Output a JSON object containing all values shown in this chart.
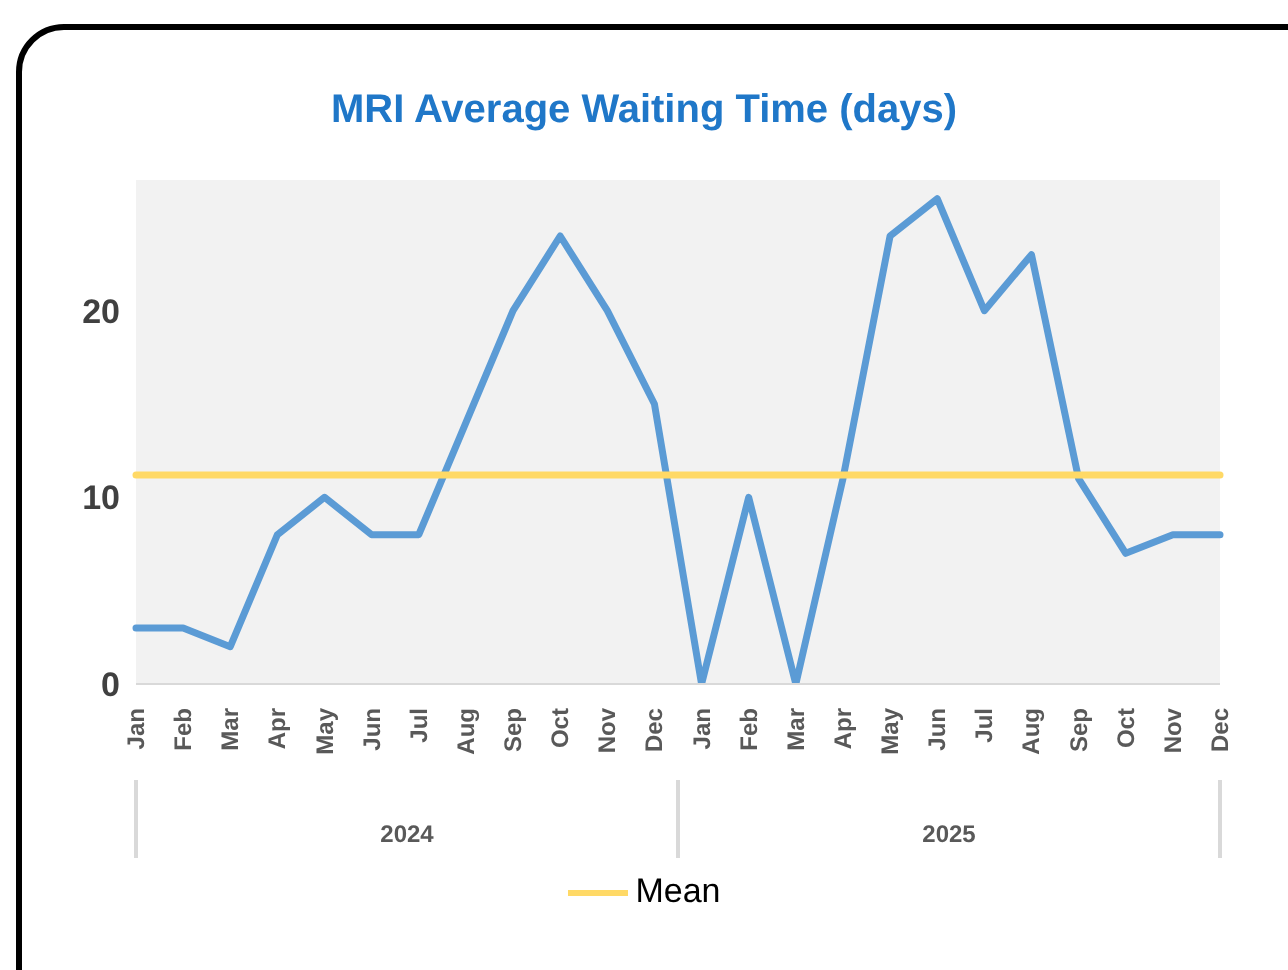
{
  "chart_data": {
    "type": "line",
    "title": "MRI Average Waiting Time (days)",
    "categories": [
      "Jan",
      "Feb",
      "Mar",
      "Apr",
      "May",
      "Jun",
      "Jul",
      "Aug",
      "Sep",
      "Oct",
      "Nov",
      "Dec",
      "Jan",
      "Feb",
      "Mar",
      "Apr",
      "May",
      "Jun",
      "Jul",
      "Aug",
      "Sep",
      "Oct",
      "Nov",
      "Dec"
    ],
    "series": [
      {
        "color": "#5b9bd5",
        "values": [
          3,
          3,
          2,
          8,
          10,
          8,
          8,
          14,
          20,
          24,
          20,
          15,
          0,
          10,
          0,
          11,
          24,
          26,
          20,
          23,
          11,
          7,
          8,
          8
        ]
      },
      {
        "name": "Mean",
        "color": "#ffd966",
        "values": [
          11.2,
          11.2,
          11.2,
          11.2,
          11.2,
          11.2,
          11.2,
          11.2,
          11.2,
          11.2,
          11.2,
          11.2,
          11.2,
          11.2,
          11.2,
          11.2,
          11.2,
          11.2,
          11.2,
          11.2,
          11.2,
          11.2,
          11.2,
          11.2
        ]
      }
    ],
    "annotations": [
      "2024",
      "2025"
    ],
    "ylim": [
      0,
      27
    ],
    "yticks": [
      0,
      10,
      20
    ],
    "grid": false,
    "legend": "bottom",
    "marker": "none",
    "line_style": "solid"
  }
}
